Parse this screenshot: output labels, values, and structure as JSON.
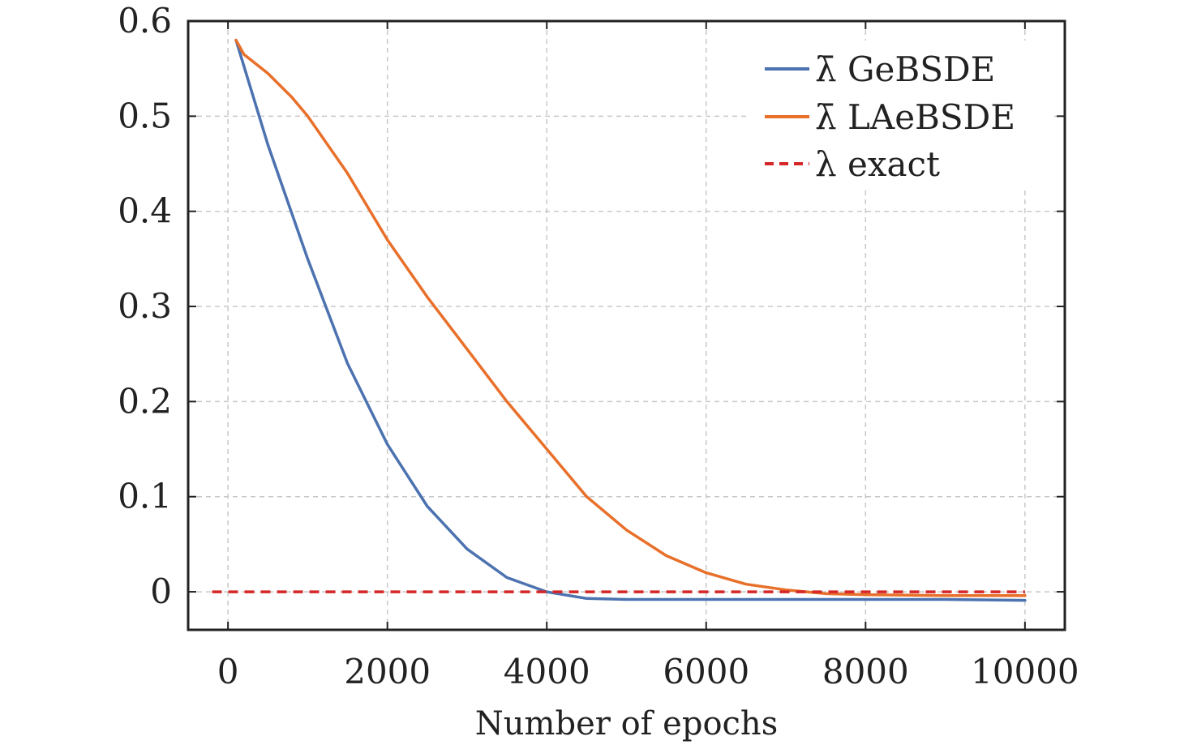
{
  "chart_data": {
    "type": "line",
    "title": "",
    "xlabel": "Number of epochs",
    "ylabel": "",
    "xlim": [
      -500,
      10500
    ],
    "ylim": [
      -0.04,
      0.6
    ],
    "xticks": [
      0,
      2000,
      4000,
      6000,
      8000,
      10000
    ],
    "xtick_labels": [
      "0",
      "2000",
      "4000",
      "6000",
      "8000",
      "10000"
    ],
    "yticks": [
      0,
      0.1,
      0.2,
      0.3,
      0.4,
      0.5,
      0.6
    ],
    "ytick_labels": [
      "0",
      "0.1",
      "0.2",
      "0.3",
      "0.4",
      "0.5",
      "0.6"
    ],
    "grid": true,
    "legend_position": "top-right",
    "series": [
      {
        "name": "λ̄ GeBSDE",
        "color": "#4c72b0",
        "style": "solid",
        "x": [
          100,
          500,
          1000,
          1500,
          2000,
          2500,
          3000,
          3500,
          4000,
          4500,
          5000,
          6000,
          7000,
          8000,
          9000,
          10000
        ],
        "y": [
          0.58,
          0.47,
          0.35,
          0.24,
          0.155,
          0.09,
          0.045,
          0.015,
          0.0,
          -0.007,
          -0.008,
          -0.008,
          -0.008,
          -0.008,
          -0.008,
          -0.009
        ]
      },
      {
        "name": "λ̄ LAeBSDE",
        "color": "#e8702a",
        "style": "solid",
        "x": [
          100,
          200,
          500,
          800,
          1000,
          1500,
          2000,
          2500,
          3000,
          3500,
          4000,
          4500,
          5000,
          5500,
          6000,
          6500,
          7000,
          7500,
          8000,
          9000,
          10000
        ],
        "y": [
          0.58,
          0.565,
          0.545,
          0.52,
          0.5,
          0.44,
          0.37,
          0.31,
          0.255,
          0.2,
          0.15,
          0.1,
          0.065,
          0.038,
          0.02,
          0.008,
          0.002,
          -0.002,
          -0.003,
          -0.004,
          -0.004
        ]
      },
      {
        "name": "λ exact",
        "color": "#d62728",
        "style": "dashed",
        "x": [
          -200,
          10000
        ],
        "y": [
          0,
          0
        ]
      }
    ]
  }
}
